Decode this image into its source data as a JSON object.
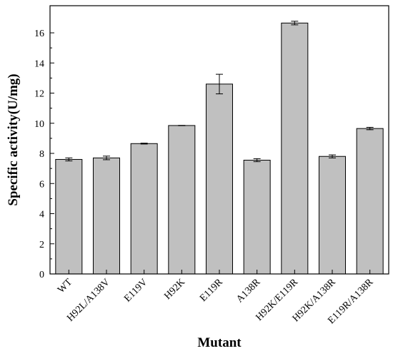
{
  "chart_data": {
    "type": "bar",
    "categories": [
      "WT",
      "H92L/A138V",
      "E119V",
      "H92K",
      "E119R",
      "A138R",
      "H92K/E119R",
      "H92K/A138R",
      "E119R/A138R"
    ],
    "series": [
      {
        "values": [
          7.6,
          7.7,
          8.65,
          9.85,
          12.6,
          7.55,
          16.65,
          7.8,
          9.65
        ],
        "errors": [
          0.1,
          0.12,
          0.03,
          0.01,
          0.65,
          0.1,
          0.12,
          0.1,
          0.08
        ]
      }
    ],
    "xlabel": "Mutant",
    "ylabel": "Specific activity(U/mg)",
    "ylim": [
      0,
      17.8
    ],
    "yticks": [
      0,
      2,
      4,
      6,
      8,
      10,
      12,
      14,
      16
    ],
    "grid": false,
    "colors": {
      "bar_fill": "#c0c0c0",
      "bar_stroke": "#000000"
    }
  }
}
